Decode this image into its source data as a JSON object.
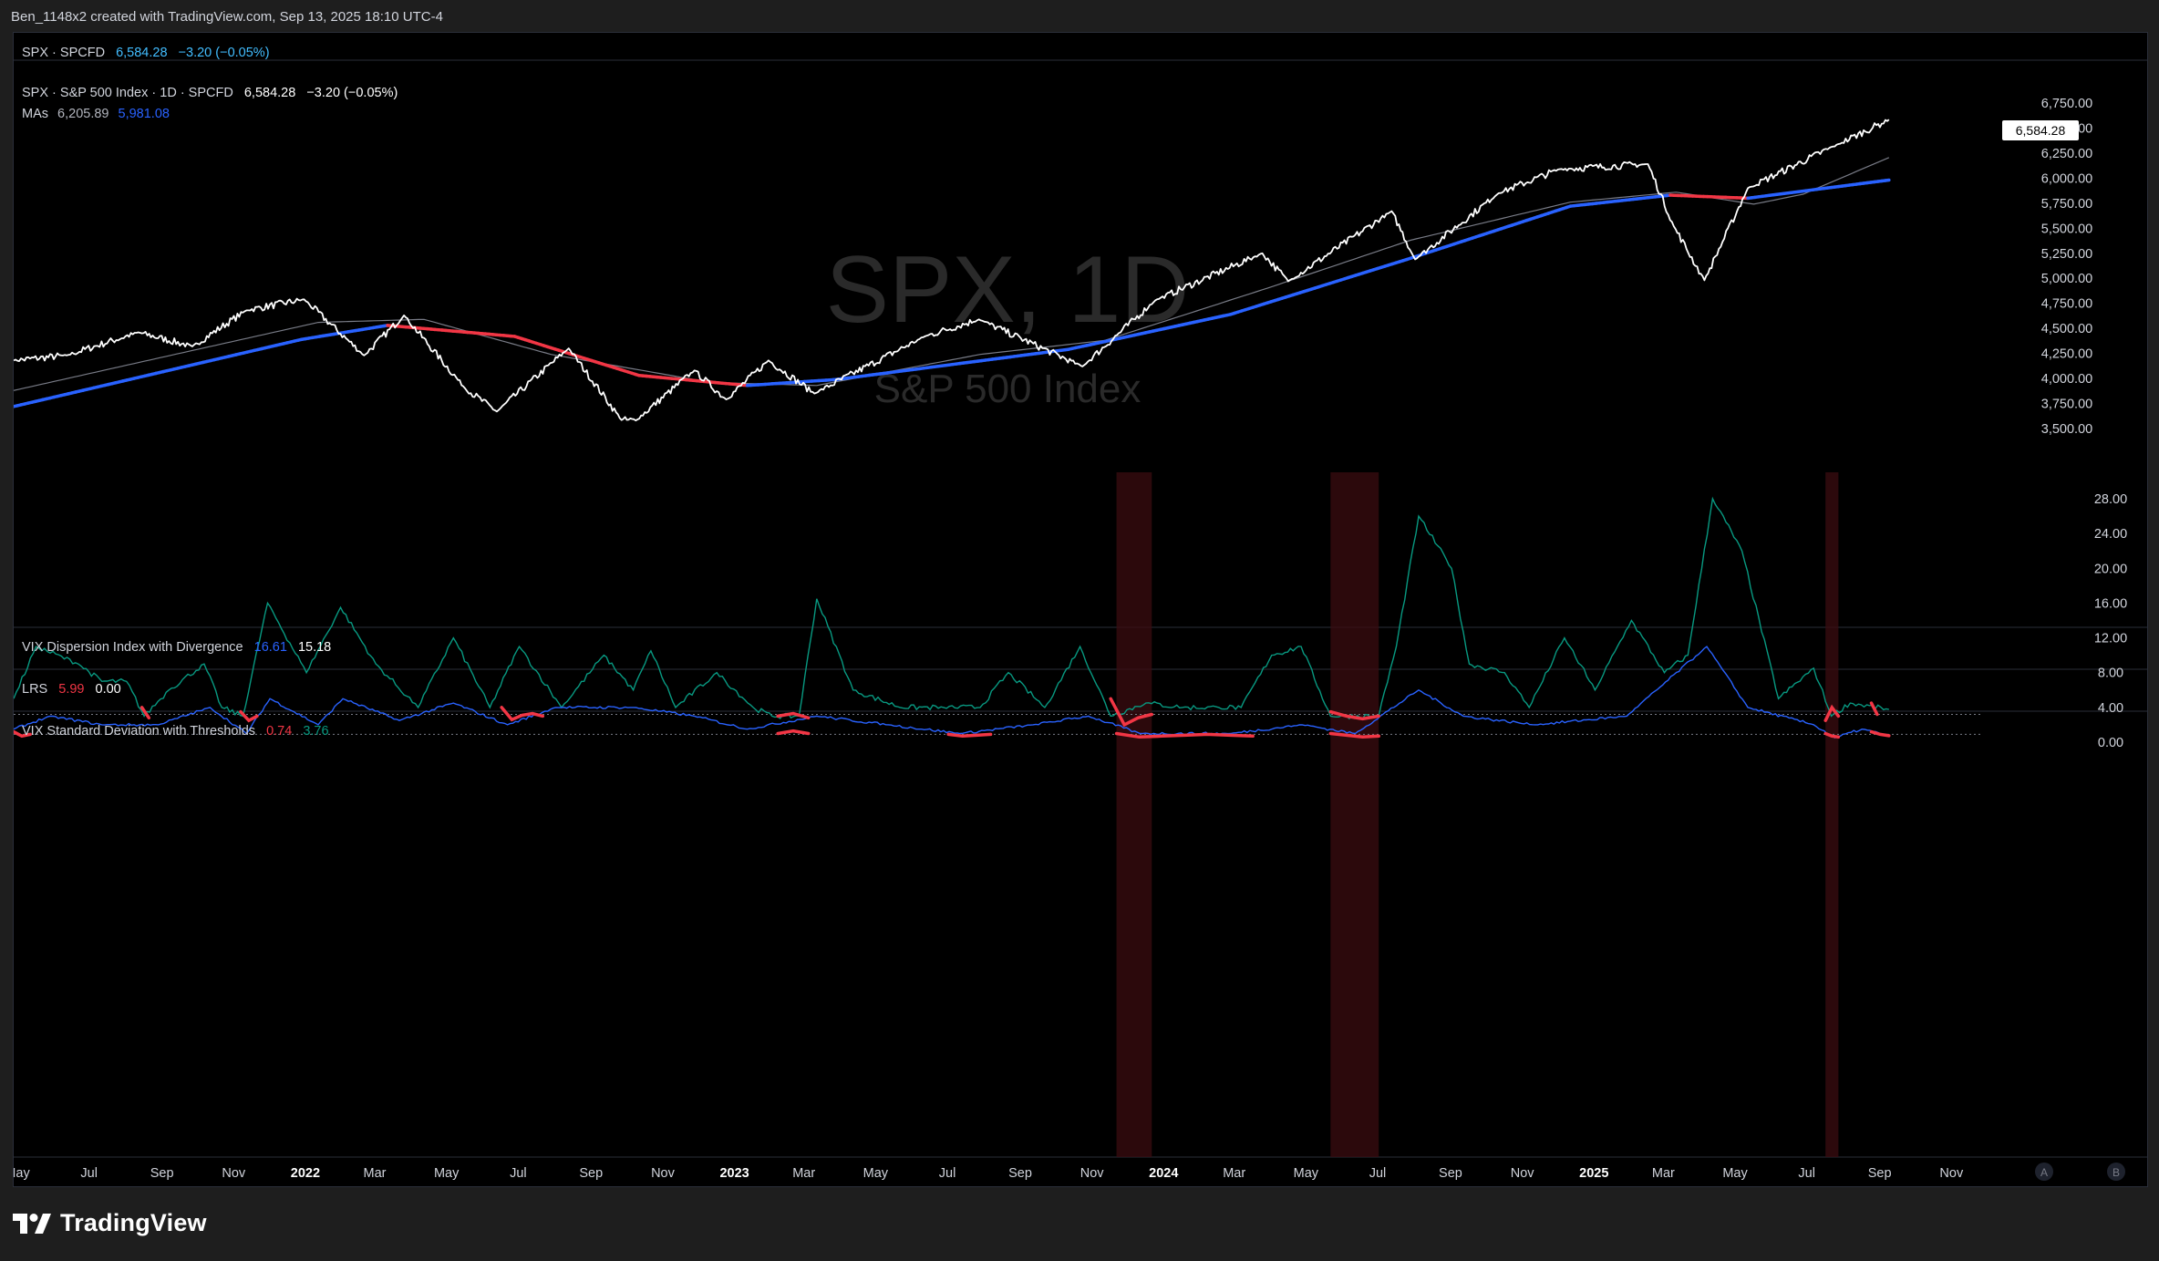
{
  "header": {
    "credit": "Ben_1148x2 created with TradingView.com, Sep 13, 2025 18:10 UTC-4"
  },
  "symbol_bar": {
    "symbol": "SPX · SPCFD",
    "price": "6,584.28",
    "change": "−3.20 (−0.05%)"
  },
  "main_pane": {
    "legend_title": "SPX · S&P 500 Index · 1D · SPCFD",
    "price": "6,584.28",
    "change": "−3.20 (−0.05%)",
    "mas_label": "MAs",
    "ma1_value": "6,205.89",
    "ma2_value": "5,981.08",
    "watermark_title": "SPX, 1D",
    "watermark_subtitle": "S&P 500 Index",
    "last_price_tag": "6,584.28"
  },
  "dispersion_pane": {
    "label": "VIX Dispersion Index with Divergence",
    "v1": "16.61",
    "v2": "15.18"
  },
  "lrs_pane": {
    "label": "LRS",
    "v1": "5.99",
    "v2": "0.00"
  },
  "std_pane": {
    "label": "VIX Standard Deviation with Thresholds",
    "v1": "0.74",
    "v2": "3.76"
  },
  "brand": {
    "name": "TradingView"
  },
  "scale_buttons": {
    "a": "A",
    "b": "B"
  },
  "colors": {
    "price": "#ffffff",
    "ma_fast": "#787b86",
    "ma_slow_up": "#2962ff",
    "ma_slow_down": "#f23645",
    "std_green": "#089981",
    "std_blue": "#2962ff",
    "std_red": "#f23645",
    "shade": "#3b0c10"
  },
  "chart_data": [
    {
      "type": "line",
      "title": "SPX, 1D",
      "subtitle": "S&P 500 Index",
      "x_ticks": [
        "May",
        "Jul",
        "Sep",
        "Nov",
        "2022",
        "Mar",
        "May",
        "Jul",
        "Sep",
        "Nov",
        "2023",
        "Mar",
        "May",
        "Jul",
        "Sep",
        "Nov",
        "2024",
        "Mar",
        "May",
        "Jul",
        "Sep",
        "Nov",
        "2025",
        "Mar",
        "May",
        "Jul",
        "Sep",
        "Nov"
      ],
      "y_ticks": [
        "6,750.00",
        "6,500.00",
        "6,250.00",
        "6,000.00",
        "5,750.00",
        "5,500.00",
        "5,250.00",
        "5,000.00",
        "4,750.00",
        "4,500.00",
        "4,250.00",
        "4,000.00",
        "3,750.00",
        "3,500.00"
      ],
      "ylim": [
        3400,
        6800
      ],
      "x_range": [
        "2021-05-01",
        "2025-12-01"
      ],
      "series": [
        {
          "name": "SPX",
          "points": [
            [
              "2021-05-01",
              4180
            ],
            [
              "2021-06-15",
              4230
            ],
            [
              "2021-08-15",
              4460
            ],
            [
              "2021-09-30",
              4320
            ],
            [
              "2021-11-15",
              4680
            ],
            [
              "2022-01-03",
              4790
            ],
            [
              "2022-02-23",
              4230
            ],
            [
              "2022-03-29",
              4630
            ],
            [
              "2022-05-20",
              3900
            ],
            [
              "2022-06-16",
              3670
            ],
            [
              "2022-08-16",
              4300
            ],
            [
              "2022-09-30",
              3585
            ],
            [
              "2022-10-12",
              3580
            ],
            [
              "2022-12-01",
              4080
            ],
            [
              "2022-12-28",
              3790
            ],
            [
              "2023-02-02",
              4180
            ],
            [
              "2023-03-13",
              3850
            ],
            [
              "2023-06-15",
              4420
            ],
            [
              "2023-07-31",
              4590
            ],
            [
              "2023-10-27",
              4120
            ],
            [
              "2023-12-28",
              4780
            ],
            [
              "2024-03-28",
              5250
            ],
            [
              "2024-04-19",
              4970
            ],
            [
              "2024-07-16",
              5670
            ],
            [
              "2024-08-05",
              5190
            ],
            [
              "2024-10-15",
              5850
            ],
            [
              "2024-12-06",
              6090
            ],
            [
              "2025-02-19",
              6140
            ],
            [
              "2025-03-13",
              5520
            ],
            [
              "2025-04-08",
              4980
            ],
            [
              "2025-05-15",
              5900
            ],
            [
              "2025-07-31",
              6340
            ],
            [
              "2025-09-12",
              6584.28
            ]
          ]
        },
        {
          "name": "MA fast",
          "points": [
            [
              "2021-05-01",
              3880
            ],
            [
              "2022-01-15",
              4560
            ],
            [
              "2022-04-15",
              4590
            ],
            [
              "2022-08-01",
              4240
            ],
            [
              "2022-12-15",
              3960
            ],
            [
              "2023-03-15",
              3930
            ],
            [
              "2023-08-01",
              4240
            ],
            [
              "2023-11-15",
              4380
            ],
            [
              "2024-04-01",
              4900
            ],
            [
              "2024-08-01",
              5380
            ],
            [
              "2024-12-15",
              5760
            ],
            [
              "2025-03-15",
              5860
            ],
            [
              "2025-05-20",
              5740
            ],
            [
              "2025-07-01",
              5840
            ],
            [
              "2025-09-12",
              6205.89
            ]
          ]
        },
        {
          "name": "MA slow",
          "points": [
            [
              "2021-05-01",
              3720
            ],
            [
              "2022-01-01",
              4390
            ],
            [
              "2022-03-15",
              4530
            ],
            [
              "2022-07-01",
              4420
            ],
            [
              "2022-10-15",
              4030
            ],
            [
              "2023-01-15",
              3930
            ],
            [
              "2023-04-01",
              3990
            ],
            [
              "2023-10-15",
              4290
            ],
            [
              "2024-03-01",
              4640
            ],
            [
              "2024-08-01",
              5200
            ],
            [
              "2024-12-15",
              5720
            ],
            [
              "2025-03-10",
              5830
            ],
            [
              "2025-05-15",
              5800
            ],
            [
              "2025-09-12",
              5981.08
            ]
          ]
        }
      ]
    },
    {
      "type": "line",
      "title": "VIX Standard Deviation with Thresholds",
      "y_ticks": [
        "28.00",
        "24.00",
        "20.00",
        "16.00",
        "12.00",
        "8.00",
        "4.00",
        "0.00"
      ],
      "ylim": [
        -1.5,
        30.5
      ],
      "thresholds": [
        3.2,
        0.9
      ],
      "shaded_periods": [
        [
          "2023-11-25",
          "2023-12-25"
        ],
        [
          "2024-05-25",
          "2024-07-05"
        ],
        [
          "2025-07-20",
          "2025-07-31"
        ]
      ],
      "series": [
        {
          "name": "Std (green)",
          "points": [
            [
              "2021-05-01",
              5
            ],
            [
              "2021-05-20",
              11
            ],
            [
              "2021-06-25",
              9
            ],
            [
              "2021-07-15",
              7
            ],
            [
              "2021-08-05",
              7
            ],
            [
              "2021-08-20",
              3
            ],
            [
              "2021-09-10",
              6
            ],
            [
              "2021-10-10",
              9
            ],
            [
              "2021-10-25",
              4
            ],
            [
              "2021-11-12",
              3
            ],
            [
              "2021-12-03",
              16
            ],
            [
              "2022-01-05",
              8
            ],
            [
              "2022-02-03",
              15.5
            ],
            [
              "2022-03-05",
              9
            ],
            [
              "2022-04-10",
              4
            ],
            [
              "2022-05-10",
              12
            ],
            [
              "2022-06-10",
              4
            ],
            [
              "2022-07-05",
              11
            ],
            [
              "2022-08-10",
              4
            ],
            [
              "2022-09-15",
              10
            ],
            [
              "2022-10-10",
              6
            ],
            [
              "2022-10-25",
              10.5
            ],
            [
              "2022-11-15",
              4
            ],
            [
              "2022-12-20",
              8
            ],
            [
              "2023-01-20",
              4
            ],
            [
              "2023-02-05",
              3
            ],
            [
              "2023-02-28",
              3
            ],
            [
              "2023-03-15",
              16.5
            ],
            [
              "2023-04-15",
              6
            ],
            [
              "2023-05-25",
              4
            ],
            [
              "2023-07-01",
              4
            ],
            [
              "2023-08-01",
              4
            ],
            [
              "2023-08-25",
              8
            ],
            [
              "2023-09-25",
              4
            ],
            [
              "2023-10-25",
              11
            ],
            [
              "2023-11-20",
              3
            ],
            [
              "2023-12-20",
              4.5
            ],
            [
              "2024-01-20",
              4
            ],
            [
              "2024-02-20",
              4
            ],
            [
              "2024-03-10",
              4
            ],
            [
              "2024-04-05",
              10
            ],
            [
              "2024-04-30",
              11
            ],
            [
              "2024-05-25",
              3
            ],
            [
              "2024-07-05",
              3
            ],
            [
              "2024-07-20",
              11
            ],
            [
              "2024-08-08",
              26
            ],
            [
              "2024-09-05",
              20
            ],
            [
              "2024-09-20",
              9
            ],
            [
              "2024-10-20",
              8
            ],
            [
              "2024-11-10",
              4
            ],
            [
              "2024-12-10",
              12
            ],
            [
              "2025-01-05",
              6
            ],
            [
              "2025-02-05",
              14
            ],
            [
              "2025-03-05",
              8
            ],
            [
              "2025-03-25",
              10
            ],
            [
              "2025-04-15",
              28
            ],
            [
              "2025-05-10",
              22
            ],
            [
              "2025-06-10",
              5
            ],
            [
              "2025-07-10",
              8.5
            ],
            [
              "2025-07-25",
              3
            ],
            [
              "2025-08-10",
              4.5
            ],
            [
              "2025-09-12",
              3.76
            ]
          ]
        },
        {
          "name": "Std (blue)",
          "points": [
            [
              "2021-05-01",
              1.5
            ],
            [
              "2021-06-01",
              3
            ],
            [
              "2021-07-15",
              2
            ],
            [
              "2021-09-01",
              2
            ],
            [
              "2021-10-15",
              4
            ],
            [
              "2021-11-15",
              1
            ],
            [
              "2021-12-05",
              5
            ],
            [
              "2022-01-15",
              2
            ],
            [
              "2022-02-05",
              5
            ],
            [
              "2022-03-25",
              2.5
            ],
            [
              "2022-05-10",
              4.5
            ],
            [
              "2022-06-25",
              2
            ],
            [
              "2022-08-05",
              4
            ],
            [
              "2022-10-10",
              4
            ],
            [
              "2022-12-01",
              3
            ],
            [
              "2023-01-15",
              1.5
            ],
            [
              "2023-03-15",
              3
            ],
            [
              "2023-05-15",
              2
            ],
            [
              "2023-07-15",
              1
            ],
            [
              "2023-09-15",
              2
            ],
            [
              "2023-11-01",
              3
            ],
            [
              "2023-12-15",
              1
            ],
            [
              "2024-03-01",
              1
            ],
            [
              "2024-05-01",
              2
            ],
            [
              "2024-06-15",
              1
            ],
            [
              "2024-08-08",
              6
            ],
            [
              "2024-09-15",
              3
            ],
            [
              "2024-11-15",
              2
            ],
            [
              "2025-02-01",
              3
            ],
            [
              "2025-04-10",
              11
            ],
            [
              "2025-05-15",
              4
            ],
            [
              "2025-07-10",
              2
            ],
            [
              "2025-07-28",
              0.5
            ],
            [
              "2025-08-20",
              1.5
            ],
            [
              "2025-09-12",
              0.74
            ]
          ]
        }
      ]
    }
  ]
}
